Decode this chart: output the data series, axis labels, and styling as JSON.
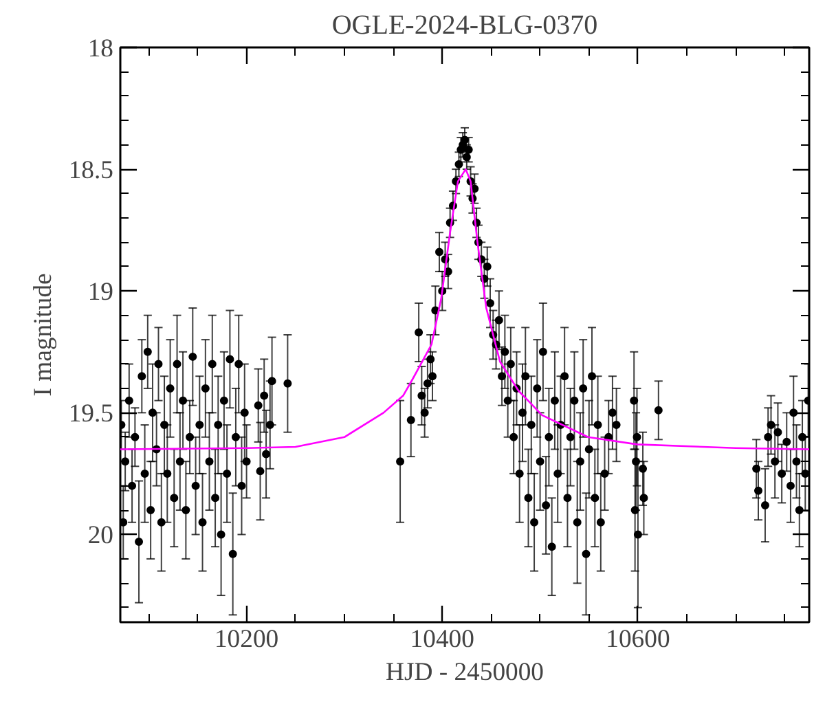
{
  "chart_data": {
    "type": "scatter",
    "title": "OGLE-2024-BLG-0370",
    "xlabel": "HJD - 2450000",
    "ylabel": "I magnitude",
    "xlim": [
      10071,
      10775
    ],
    "ylim": [
      20.36,
      18
    ],
    "xticks": [
      10200,
      10400,
      10600
    ],
    "yticks": [
      18,
      18.5,
      19,
      19.5,
      20
    ],
    "marker": "circle",
    "series": [
      {
        "color": "#000000",
        "x": [
          10072,
          10074,
          10076,
          10080,
          10083,
          10086,
          10090,
          10093,
          10096,
          10099,
          10102,
          10104,
          10108,
          10110,
          10113,
          10116,
          10119,
          10122,
          10126,
          10129,
          10132,
          10135,
          10138,
          10142,
          10145,
          10148,
          10152,
          10155,
          10158,
          10162,
          10165,
          10168,
          10171,
          10174,
          10177,
          10180,
          10183,
          10186,
          10189,
          10192,
          10195,
          10198,
          10200,
          10212,
          10214,
          10218,
          10220,
          10224,
          10226,
          10242,
          10357,
          10368,
          10376,
          10379,
          10382,
          10385,
          10388,
          10390,
          10393,
          10397,
          10400,
          10403,
          10406,
          10408,
          10411,
          10414,
          10417,
          10419,
          10421,
          10423,
          10425,
          10427,
          10429,
          10431,
          10433,
          10435,
          10437,
          10440,
          10443,
          10446,
          10449,
          10452,
          10455,
          10458,
          10461,
          10464,
          10467,
          10470,
          10473,
          10476,
          10479,
          10482,
          10485,
          10488,
          10491,
          10494,
          10497,
          10500,
          10503,
          10506,
          10509,
          10512,
          10515,
          10518,
          10521,
          10525,
          10528,
          10531,
          10535,
          10538,
          10541,
          10544,
          10547,
          10550,
          10553,
          10556,
          10559,
          10562,
          10566,
          10570,
          10574,
          10578,
          10596,
          10597,
          10598,
          10599,
          10600,
          10605,
          10606,
          10621,
          10721,
          10723,
          10730,
          10733,
          10736,
          10740,
          10743,
          10747,
          10752,
          10756,
          10759,
          10762,
          10765,
          10768,
          10771,
          10774
        ],
        "values": [
          19.55,
          19.95,
          19.7,
          19.45,
          19.8,
          19.6,
          20.03,
          19.35,
          19.75,
          19.25,
          19.9,
          19.5,
          19.65,
          19.3,
          19.95,
          19.55,
          19.75,
          19.4,
          19.85,
          19.3,
          19.7,
          19.45,
          19.9,
          19.6,
          19.27,
          19.8,
          19.55,
          19.95,
          19.4,
          19.7,
          19.3,
          19.85,
          19.55,
          20.0,
          19.45,
          19.75,
          19.28,
          20.08,
          19.6,
          19.3,
          19.8,
          19.5,
          19.7,
          19.47,
          19.74,
          19.43,
          19.67,
          19.55,
          19.37,
          19.38,
          19.7,
          19.53,
          19.17,
          19.43,
          19.5,
          19.38,
          19.28,
          19.35,
          19.08,
          18.84,
          19.0,
          18.87,
          18.92,
          18.72,
          18.65,
          18.55,
          18.48,
          18.42,
          18.4,
          18.38,
          18.45,
          18.42,
          18.55,
          18.62,
          18.58,
          18.72,
          18.8,
          18.87,
          18.95,
          18.9,
          19.05,
          19.18,
          19.22,
          19.12,
          19.35,
          19.25,
          19.45,
          19.3,
          19.6,
          19.4,
          19.75,
          19.5,
          19.35,
          19.85,
          19.55,
          19.95,
          19.4,
          19.7,
          19.25,
          19.88,
          19.6,
          20.05,
          19.45,
          19.75,
          19.55,
          19.35,
          19.85,
          19.6,
          19.45,
          19.95,
          19.7,
          19.4,
          20.08,
          19.65,
          19.35,
          19.85,
          19.55,
          19.95,
          19.75,
          19.6,
          19.5,
          19.55,
          19.45,
          19.9,
          19.7,
          19.6,
          20.0,
          19.73,
          19.85,
          19.49,
          19.73,
          19.82,
          19.88,
          19.6,
          19.55,
          19.7,
          19.58,
          19.75,
          19.62,
          19.8,
          19.5,
          19.7,
          19.9,
          19.6,
          19.75,
          19.45
        ],
        "errors": [
          0.1,
          0.15,
          0.12,
          0.15,
          0.15,
          0.12,
          0.25,
          0.15,
          0.2,
          0.15,
          0.2,
          0.2,
          0.15,
          0.15,
          0.2,
          0.2,
          0.2,
          0.2,
          0.2,
          0.2,
          0.2,
          0.2,
          0.2,
          0.15,
          0.2,
          0.2,
          0.2,
          0.2,
          0.2,
          0.2,
          0.2,
          0.2,
          0.2,
          0.25,
          0.2,
          0.2,
          0.2,
          0.25,
          0.2,
          0.2,
          0.2,
          0.2,
          0.15,
          0.15,
          0.2,
          0.15,
          0.18,
          0.18,
          0.18,
          0.2,
          0.25,
          0.15,
          0.12,
          0.12,
          0.1,
          0.1,
          0.1,
          0.1,
          0.1,
          0.08,
          0.08,
          0.07,
          0.07,
          0.06,
          0.06,
          0.05,
          0.05,
          0.05,
          0.05,
          0.05,
          0.05,
          0.05,
          0.06,
          0.06,
          0.06,
          0.06,
          0.07,
          0.07,
          0.08,
          0.08,
          0.1,
          0.1,
          0.1,
          0.12,
          0.12,
          0.15,
          0.15,
          0.15,
          0.15,
          0.15,
          0.2,
          0.2,
          0.2,
          0.2,
          0.2,
          0.2,
          0.2,
          0.2,
          0.2,
          0.2,
          0.2,
          0.2,
          0.2,
          0.2,
          0.2,
          0.2,
          0.2,
          0.2,
          0.2,
          0.25,
          0.2,
          0.2,
          0.25,
          0.2,
          0.2,
          0.2,
          0.2,
          0.2,
          0.15,
          0.15,
          0.15,
          0.15,
          0.2,
          0.25,
          0.2,
          0.2,
          0.3,
          0.15,
          0.15,
          0.12,
          0.12,
          0.12,
          0.15,
          0.12,
          0.12,
          0.15,
          0.12,
          0.12,
          0.12,
          0.15,
          0.15,
          0.15,
          0.15,
          0.15,
          0.15,
          0.15
        ]
      },
      {
        "type": "line",
        "marker": "none",
        "color": "#ff00ff",
        "x": [
          10071,
          10200,
          10250,
          10300,
          10340,
          10360,
          10370,
          10389,
          10399,
          10408,
          10416,
          10424,
          10429,
          10436,
          10445,
          10459,
          10478,
          10502,
          10549,
          10599,
          10700,
          10775
        ],
        "values": [
          19.65,
          19.645,
          19.64,
          19.6,
          19.5,
          19.43,
          19.36,
          19.22,
          19.03,
          18.76,
          18.55,
          18.5,
          18.55,
          18.8,
          19.07,
          19.29,
          19.41,
          19.51,
          19.6,
          19.63,
          19.645,
          19.65
        ]
      }
    ]
  }
}
